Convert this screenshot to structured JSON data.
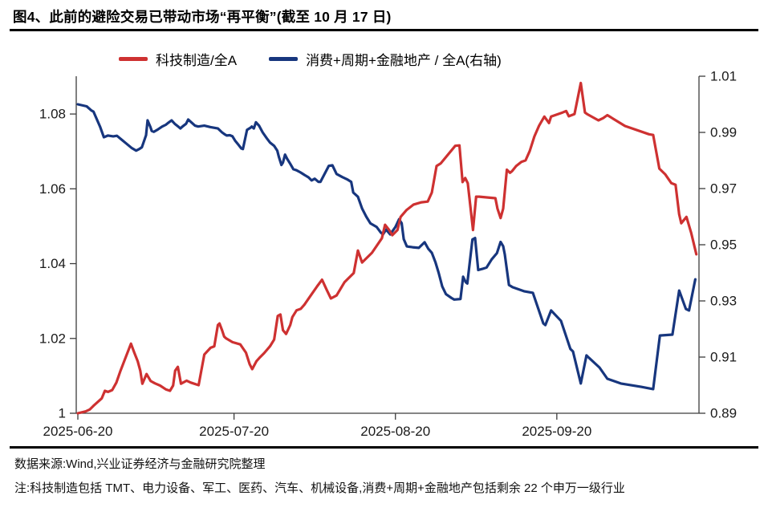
{
  "header": {
    "title": "图4、此前的避险交易已带动市场“再平衡”(截至 10 月 17 日)"
  },
  "footer": {
    "source": "数据来源:Wind,兴业证券经济与金融研究院整理",
    "note": "注:科技制造包括 TMT、电力设备、军工、医药、汽车、机械设备,消费+周期+金融地产包括剩余 22 个申万一级行业"
  },
  "chart_data": {
    "type": "line",
    "title": "图4、此前的避险交易已带动市场“再平衡”(截至 10 月 17 日)",
    "legend_position": "top",
    "grid": false,
    "x_axis": {
      "unit": "date",
      "min_day": 0,
      "max_day": 119,
      "start_date": "2025-06-20",
      "end_date": "2025-10-17",
      "ticks": [
        {
          "label": "2025-06-20",
          "day": 0
        },
        {
          "label": "2025-07-20",
          "day": 30
        },
        {
          "label": "2025-08-20",
          "day": 61
        },
        {
          "label": "2025-09-20",
          "day": 92
        }
      ]
    },
    "left_axis": {
      "min": 1.0,
      "max": 1.0901,
      "ticks": [
        {
          "label": "1",
          "v": 1.0
        },
        {
          "label": "1.02",
          "v": 1.02
        },
        {
          "label": "1.04",
          "v": 1.04
        },
        {
          "label": "1.06",
          "v": 1.06
        },
        {
          "label": "1.08",
          "v": 1.08
        }
      ]
    },
    "right_axis": {
      "min": 0.89,
      "max": 1.01,
      "ticks": [
        {
          "label": "0.89",
          "v": 0.89
        },
        {
          "label": "0.91",
          "v": 0.91
        },
        {
          "label": "0.93",
          "v": 0.93
        },
        {
          "label": "0.95",
          "v": 0.95
        },
        {
          "label": "0.97",
          "v": 0.97
        },
        {
          "label": "0.99",
          "v": 0.99
        },
        {
          "label": "1.01",
          "v": 1.01
        }
      ]
    },
    "series": [
      {
        "name": "消费+周期+金融地产 / 全A(右轴)",
        "axis": "right",
        "color": "#17367e",
        "points": [
          [
            0,
            1.0
          ],
          [
            1.7,
            0.9993
          ],
          [
            2.6,
            0.9978
          ],
          [
            3,
            0.9974
          ],
          [
            4.3,
            0.9919
          ],
          [
            5,
            0.9883
          ],
          [
            5.8,
            0.9889
          ],
          [
            6.8,
            0.9886
          ],
          [
            7.5,
            0.9888
          ],
          [
            8.5,
            0.9873
          ],
          [
            9.2,
            0.9862
          ],
          [
            10.3,
            0.9845
          ],
          [
            11.2,
            0.9835
          ],
          [
            11.8,
            0.9841
          ],
          [
            12.3,
            0.9847
          ],
          [
            13.1,
            0.989
          ],
          [
            13.4,
            0.9943
          ],
          [
            13.9,
            0.9921
          ],
          [
            14.2,
            0.9905
          ],
          [
            14.6,
            0.9902
          ],
          [
            15.4,
            0.9911
          ],
          [
            16.2,
            0.9921
          ],
          [
            16.9,
            0.9927
          ],
          [
            17.5,
            0.9936
          ],
          [
            18,
            0.9943
          ],
          [
            18.6,
            0.9931
          ],
          [
            19.4,
            0.9919
          ],
          [
            19.7,
            0.9914
          ],
          [
            20.1,
            0.9921
          ],
          [
            20.8,
            0.9931
          ],
          [
            21.2,
            0.9946
          ],
          [
            21.8,
            0.9936
          ],
          [
            22.5,
            0.9924
          ],
          [
            23.1,
            0.9921
          ],
          [
            24.3,
            0.9924
          ],
          [
            25.5,
            0.9919
          ],
          [
            26.9,
            0.9914
          ],
          [
            27.7,
            0.99
          ],
          [
            28.3,
            0.9892
          ],
          [
            28.6,
            0.9889
          ],
          [
            29.2,
            0.989
          ],
          [
            29.7,
            0.9886
          ],
          [
            30.2,
            0.9871
          ],
          [
            30.8,
            0.9857
          ],
          [
            31.4,
            0.9843
          ],
          [
            31.7,
            0.9841
          ],
          [
            32.5,
            0.9909
          ],
          [
            33.2,
            0.9917
          ],
          [
            33.4,
            0.9921
          ],
          [
            33.8,
            0.9914
          ],
          [
            34.2,
            0.9936
          ],
          [
            34.8,
            0.9924
          ],
          [
            35.5,
            0.99
          ],
          [
            36.3,
            0.9879
          ],
          [
            36.9,
            0.9864
          ],
          [
            37.7,
            0.9852
          ],
          [
            38.3,
            0.9835
          ],
          [
            38.6,
            0.9814
          ],
          [
            39.1,
            0.9784
          ],
          [
            39.4,
            0.9793
          ],
          [
            39.8,
            0.9821
          ],
          [
            40.2,
            0.9806
          ],
          [
            40.8,
            0.9788
          ],
          [
            41.4,
            0.9769
          ],
          [
            42,
            0.9765
          ],
          [
            42.8,
            0.9757
          ],
          [
            43.5,
            0.9749
          ],
          [
            44.3,
            0.974
          ],
          [
            44.9,
            0.9729
          ],
          [
            45.5,
            0.9735
          ],
          [
            46.2,
            0.9724
          ],
          [
            46.6,
            0.9724
          ],
          [
            48.2,
            0.9781
          ],
          [
            48.9,
            0.9783
          ],
          [
            49.7,
            0.9752
          ],
          [
            50.8,
            0.9741
          ],
          [
            51.7,
            0.9733
          ],
          [
            52.5,
            0.9724
          ],
          [
            52.9,
            0.9686
          ],
          [
            53.8,
            0.9671
          ],
          [
            54.6,
            0.9629
          ],
          [
            55.4,
            0.96
          ],
          [
            56.2,
            0.9576
          ],
          [
            57.4,
            0.9563
          ],
          [
            58.2,
            0.9543
          ],
          [
            58.6,
            0.9537
          ],
          [
            59.2,
            0.9554
          ],
          [
            60,
            0.9537
          ],
          [
            61,
            0.9563
          ],
          [
            61.7,
            0.9591
          ],
          [
            62.2,
            0.9577
          ],
          [
            62.6,
            0.952
          ],
          [
            63.2,
            0.9494
          ],
          [
            64.3,
            0.9491
          ],
          [
            65.5,
            0.9489
          ],
          [
            66.6,
            0.9509
          ],
          [
            67.3,
            0.9486
          ],
          [
            68,
            0.9471
          ],
          [
            68.7,
            0.9437
          ],
          [
            69.3,
            0.94
          ],
          [
            70,
            0.9351
          ],
          [
            70.7,
            0.9324
          ],
          [
            71.8,
            0.931
          ],
          [
            72.3,
            0.9305
          ],
          [
            73.5,
            0.9307
          ],
          [
            74,
            0.9386
          ],
          [
            74.5,
            0.9367
          ],
          [
            74.8,
            0.9362
          ],
          [
            75.8,
            0.9519
          ],
          [
            76.3,
            0.9524
          ],
          [
            76.9,
            0.941
          ],
          [
            77.7,
            0.9414
          ],
          [
            78.5,
            0.9419
          ],
          [
            79.5,
            0.9448
          ],
          [
            80.5,
            0.947
          ],
          [
            81.2,
            0.951
          ],
          [
            81.7,
            0.9495
          ],
          [
            82,
            0.9466
          ],
          [
            82.8,
            0.9357
          ],
          [
            83.5,
            0.9349
          ],
          [
            85.8,
            0.9334
          ],
          [
            87.4,
            0.9329
          ],
          [
            89.4,
            0.922
          ],
          [
            89.8,
            0.9214
          ],
          [
            90.9,
            0.9266
          ],
          [
            92.8,
            0.9229
          ],
          [
            94.6,
            0.9129
          ],
          [
            95.1,
            0.912
          ],
          [
            96.6,
            0.9006
          ],
          [
            97.7,
            0.9106
          ],
          [
            98.2,
            0.9097
          ],
          [
            100.2,
            0.9063
          ],
          [
            101.7,
            0.9023
          ],
          [
            104.3,
            0.9006
          ],
          [
            108.2,
            0.8994
          ],
          [
            110.5,
            0.8986
          ],
          [
            111.8,
            0.9177
          ],
          [
            114.2,
            0.918
          ],
          [
            115.5,
            0.9337
          ],
          [
            116.8,
            0.9271
          ],
          [
            117.4,
            0.9266
          ],
          [
            118.6,
            0.9377
          ]
        ]
      },
      {
        "name": "科技制造/全A",
        "axis": "left",
        "color": "#ce3131",
        "points": [
          [
            0,
            1.0
          ],
          [
            1.5,
            1.0005
          ],
          [
            2.3,
            1.001
          ],
          [
            3,
            1.002
          ],
          [
            4.6,
            1.004
          ],
          [
            5.2,
            1.006
          ],
          [
            5.8,
            1.0057
          ],
          [
            6.6,
            1.0062
          ],
          [
            7.4,
            1.0082
          ],
          [
            8.2,
            1.0114
          ],
          [
            9.2,
            1.015
          ],
          [
            10.2,
            1.0186
          ],
          [
            10.9,
            1.016
          ],
          [
            11.5,
            1.0139
          ],
          [
            12,
            1.0114
          ],
          [
            12.4,
            1.0079
          ],
          [
            13.2,
            1.0105
          ],
          [
            14,
            1.0086
          ],
          [
            14.8,
            1.008
          ],
          [
            15.8,
            1.0074
          ],
          [
            16.9,
            1.0064
          ],
          [
            17.7,
            1.006
          ],
          [
            18.3,
            1.0074
          ],
          [
            18.7,
            1.0114
          ],
          [
            19.2,
            1.0124
          ],
          [
            19.8,
            1.0079
          ],
          [
            20.9,
            1.0087
          ],
          [
            21.7,
            1.0082
          ],
          [
            23.2,
            1.0075
          ],
          [
            24.3,
            1.0157
          ],
          [
            25.5,
            1.0175
          ],
          [
            26.2,
            1.0179
          ],
          [
            26.9,
            1.0236
          ],
          [
            27.2,
            1.024
          ],
          [
            27.7,
            1.0222
          ],
          [
            28.1,
            1.0205
          ],
          [
            28.5,
            1.02
          ],
          [
            29.7,
            1.019
          ],
          [
            31.2,
            1.0184
          ],
          [
            32.3,
            1.0162
          ],
          [
            33,
            1.0131
          ],
          [
            33.5,
            1.0118
          ],
          [
            34.3,
            1.0139
          ],
          [
            35,
            1.015
          ],
          [
            35.8,
            1.0161
          ],
          [
            36.9,
            1.0179
          ],
          [
            37.7,
            1.0197
          ],
          [
            38.4,
            1.026
          ],
          [
            38.9,
            1.0264
          ],
          [
            39.4,
            1.0222
          ],
          [
            40,
            1.0212
          ],
          [
            40.8,
            1.0236
          ],
          [
            41.2,
            1.0257
          ],
          [
            42,
            1.0275
          ],
          [
            42.8,
            1.0279
          ],
          [
            43.5,
            1.029
          ],
          [
            45,
            1.032
          ],
          [
            46,
            1.034
          ],
          [
            46.9,
            1.0357
          ],
          [
            47.8,
            1.033
          ],
          [
            48.6,
            1.0307
          ],
          [
            49.7,
            1.0315
          ],
          [
            51.2,
            1.035
          ],
          [
            53,
            1.0375
          ],
          [
            53.8,
            1.0435
          ],
          [
            54.6,
            1.0403
          ],
          [
            56.5,
            1.0429
          ],
          [
            58.4,
            1.0468
          ],
          [
            59,
            1.0504
          ],
          [
            59.8,
            1.049
          ],
          [
            60.4,
            1.0476
          ],
          [
            61.4,
            1.049
          ],
          [
            62,
            1.0525
          ],
          [
            63.1,
            1.0543
          ],
          [
            64.5,
            1.0558
          ],
          [
            66,
            1.0564
          ],
          [
            67.2,
            1.0566
          ],
          [
            68,
            1.059
          ],
          [
            68.9,
            1.0661
          ],
          [
            69.7,
            1.0668
          ],
          [
            72.5,
            1.0715
          ],
          [
            73.3,
            1.0716
          ],
          [
            73.9,
            1.0618
          ],
          [
            74.4,
            1.0629
          ],
          [
            74.9,
            1.0615
          ],
          [
            75.9,
            1.049
          ],
          [
            76.5,
            1.0579
          ],
          [
            77.1,
            1.0579
          ],
          [
            80.2,
            1.0575
          ],
          [
            80.6,
            1.0547
          ],
          [
            81.2,
            1.0522
          ],
          [
            81.7,
            1.0547
          ],
          [
            82.4,
            1.0651
          ],
          [
            83,
            1.0643
          ],
          [
            83.4,
            1.0647
          ],
          [
            84.2,
            1.0661
          ],
          [
            85.2,
            1.0672
          ],
          [
            86,
            1.0676
          ],
          [
            86.8,
            1.0701
          ],
          [
            87.7,
            1.074
          ],
          [
            88.6,
            1.0769
          ],
          [
            89.6,
            1.0793
          ],
          [
            90.5,
            1.0776
          ],
          [
            90.9,
            1.0793
          ],
          [
            93.1,
            1.0804
          ],
          [
            93.8,
            1.0808
          ],
          [
            94.3,
            1.0794
          ],
          [
            95.4,
            1.08
          ],
          [
            96.6,
            1.0883
          ],
          [
            97.4,
            1.0804
          ],
          [
            97.8,
            1.08
          ],
          [
            100,
            1.0783
          ],
          [
            100.9,
            1.0789
          ],
          [
            101.7,
            1.0797
          ],
          [
            105.1,
            1.0768
          ],
          [
            109.7,
            1.0746
          ],
          [
            110.5,
            1.0744
          ],
          [
            111.7,
            1.0654
          ],
          [
            112.8,
            1.0639
          ],
          [
            114,
            1.0615
          ],
          [
            114.8,
            1.0611
          ],
          [
            115.5,
            1.0532
          ],
          [
            115.9,
            1.0508
          ],
          [
            116.9,
            1.0525
          ],
          [
            117.8,
            1.0483
          ],
          [
            118.8,
            1.0425
          ]
        ]
      }
    ]
  }
}
